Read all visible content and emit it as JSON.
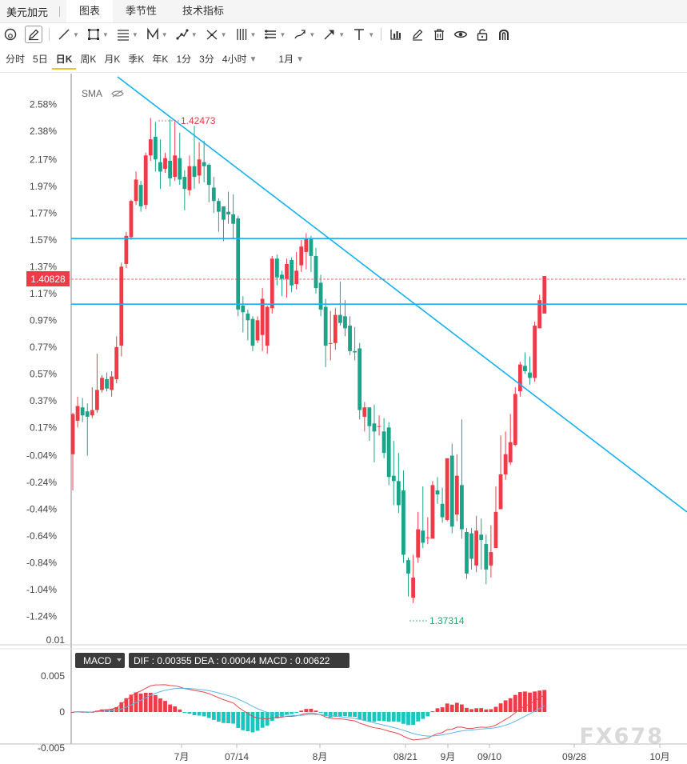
{
  "header": {
    "instrument": "美元加元",
    "tabs": [
      {
        "label": "图表",
        "active": true
      },
      {
        "label": "季节性",
        "active": false
      },
      {
        "label": "技术指标",
        "active": false
      }
    ]
  },
  "toolbar": {
    "tools": [
      "reset-view-icon",
      "pencil-icon",
      "line-icon",
      "rectangle-icon",
      "fib-icon",
      "pattern-icon",
      "path-icon",
      "measure-icon",
      "bars-icon",
      "channel-icon",
      "brush-icon",
      "arrow-icon",
      "text-icon",
      "indicator-icon",
      "edit-icon",
      "trash-icon",
      "eye-icon",
      "unlock-icon",
      "magnet-icon"
    ]
  },
  "periods": {
    "items": [
      "分时",
      "5日",
      "日K",
      "周K",
      "月K",
      "季K",
      "年K",
      "1分",
      "3分",
      "4小时"
    ],
    "active": "日K",
    "range": "1月"
  },
  "chart_data": {
    "type": "candlestick",
    "indicator_label": "SMA",
    "y_ticks": [
      "2.58%",
      "2.38%",
      "2.17%",
      "1.97%",
      "1.77%",
      "1.57%",
      "1.37%",
      "1.17%",
      "0.97%",
      "0.77%",
      "0.57%",
      "0.37%",
      "0.17%",
      "-0.04%",
      "-0.24%",
      "-0.44%",
      "-0.64%",
      "-0.84%",
      "-1.04%",
      "-1.24%"
    ],
    "x_ticks": [
      "7月",
      "07/14",
      "8月",
      "08/21",
      "9月",
      "09/10",
      "09/28",
      "10月"
    ],
    "current_price": "1.40828",
    "high_label": "1.42473",
    "low_label": "1.37314",
    "candles_pct": [
      [
        -0.03,
        0.27,
        -0.3,
        0.28
      ],
      [
        0.22,
        0.33,
        0.17,
        0.4
      ],
      [
        0.32,
        0.26,
        0.21,
        0.39
      ],
      [
        0.29,
        0.25,
        -0.04,
        0.35
      ],
      [
        0.26,
        0.3,
        0.24,
        0.47
      ],
      [
        0.3,
        0.45,
        0.28,
        0.72
      ],
      [
        0.45,
        0.54,
        0.43,
        0.56
      ],
      [
        0.53,
        0.46,
        0.44,
        0.58
      ],
      [
        0.45,
        0.55,
        0.4,
        0.59
      ],
      [
        0.53,
        0.77,
        0.5,
        0.85
      ],
      [
        0.78,
        1.37,
        0.7,
        1.4
      ],
      [
        1.39,
        1.6,
        1.36,
        1.63
      ],
      [
        1.59,
        1.86,
        1.57,
        1.87
      ],
      [
        1.86,
        2.02,
        1.83,
        2.08
      ],
      [
        1.98,
        1.82,
        1.78,
        2.01
      ],
      [
        1.83,
        2.2,
        1.8,
        2.22
      ],
      [
        2.2,
        2.32,
        2.16,
        2.48
      ],
      [
        2.34,
        2.17,
        2.08,
        2.45
      ],
      [
        2.15,
        2.08,
        1.95,
        2.32
      ],
      [
        2.1,
        2.18,
        2.07,
        2.22
      ],
      [
        2.16,
        2.03,
        1.97,
        2.47
      ],
      [
        2.04,
        2.2,
        2.01,
        2.45
      ],
      [
        2.18,
        2.02,
        1.98,
        2.37
      ],
      [
        2.04,
        1.95,
        1.79,
        2.09
      ],
      [
        1.94,
        2.12,
        1.9,
        2.2
      ],
      [
        2.12,
        2.04,
        1.95,
        2.42
      ],
      [
        2.05,
        2.17,
        1.99,
        2.3
      ],
      [
        2.15,
        2.12,
        2.0,
        2.31
      ],
      [
        2.13,
        1.98,
        1.85,
        2.14
      ],
      [
        1.96,
        1.86,
        1.77,
        2.04
      ],
      [
        1.86,
        1.78,
        1.63,
        1.88
      ],
      [
        1.82,
        1.72,
        1.56,
        1.8
      ],
      [
        1.78,
        1.76,
        1.69,
        1.93
      ],
      [
        1.76,
        1.69,
        1.58,
        1.91
      ],
      [
        1.73,
        1.05,
        1.0,
        1.75
      ],
      [
        1.08,
        1.03,
        0.88,
        1.15
      ],
      [
        1.02,
        0.97,
        0.82,
        1.05
      ],
      [
        0.98,
        0.78,
        0.74,
        1.0
      ],
      [
        0.82,
        0.97,
        0.8,
        1.0
      ],
      [
        0.86,
        1.13,
        0.74,
        1.21
      ],
      [
        0.78,
        1.07,
        0.72,
        1.08
      ],
      [
        1.06,
        1.43,
        1.02,
        1.45
      ],
      [
        1.43,
        1.29,
        1.23,
        1.46
      ],
      [
        1.31,
        1.28,
        1.15,
        1.34
      ],
      [
        1.28,
        1.39,
        1.14,
        1.43
      ],
      [
        1.42,
        1.23,
        1.18,
        1.44
      ],
      [
        1.24,
        1.34,
        1.2,
        1.48
      ],
      [
        1.38,
        1.52,
        1.33,
        1.57
      ],
      [
        1.48,
        1.58,
        1.35,
        1.62
      ],
      [
        1.58,
        1.45,
        1.33,
        1.6
      ],
      [
        1.45,
        1.21,
        1.17,
        1.51
      ],
      [
        1.25,
        1.05,
        1.0,
        1.31
      ],
      [
        1.07,
        0.78,
        0.62,
        1.13
      ],
      [
        0.8,
        0.8,
        0.67,
        1.04
      ],
      [
        0.8,
        1.01,
        0.75,
        1.06
      ],
      [
        1.01,
        0.95,
        0.93,
        1.26
      ],
      [
        1.0,
        0.91,
        0.85,
        1.12
      ],
      [
        0.93,
        0.74,
        0.71,
        1.0
      ],
      [
        0.74,
        0.73,
        0.67,
        0.92
      ],
      [
        0.76,
        0.3,
        0.23,
        0.8
      ],
      [
        0.25,
        0.32,
        0.14,
        0.36
      ],
      [
        0.32,
        0.18,
        0.07,
        0.21
      ],
      [
        0.2,
        0.14,
        -0.09,
        0.34
      ],
      [
        0.18,
        0.18,
        0.11,
        0.26
      ],
      [
        0.14,
        -0.02,
        -0.06,
        0.24
      ],
      [
        0.17,
        -0.2,
        -0.26,
        0.21
      ],
      [
        -0.19,
        -0.23,
        -0.41,
        0.07
      ],
      [
        -0.23,
        -0.41,
        -0.47,
        -0.02
      ],
      [
        -0.3,
        -0.78,
        -0.84,
        -0.15
      ],
      [
        -0.82,
        -0.92,
        -1.09,
        -0.8
      ],
      [
        -1.1,
        -0.95,
        -1.14,
        -0.78
      ],
      [
        -0.8,
        -0.59,
        -0.84,
        -0.46
      ],
      [
        -0.6,
        -0.69,
        -0.73,
        -0.27
      ],
      [
        -0.65,
        -0.65,
        -0.7,
        -0.5
      ],
      [
        -0.66,
        -0.26,
        -0.64,
        -0.23
      ],
      [
        -0.3,
        -0.33,
        -0.4,
        -0.2
      ],
      [
        -0.4,
        -0.5,
        -0.54,
        -0.28
      ],
      [
        -0.52,
        -0.06,
        -0.53,
        -0.08
      ],
      [
        -0.04,
        -0.57,
        -0.62,
        0.05
      ],
      [
        -0.48,
        -0.19,
        -0.53,
        -0.03
      ],
      [
        -0.26,
        -0.59,
        -0.66,
        0.23
      ],
      [
        -0.61,
        -0.92,
        -0.96,
        -0.58
      ],
      [
        -0.62,
        -0.81,
        -0.89,
        -0.58
      ],
      [
        -0.86,
        -0.6,
        -0.91,
        -0.49
      ],
      [
        -0.63,
        -0.67,
        -0.89,
        -0.51
      ],
      [
        -0.7,
        -0.89,
        -1.0,
        -0.63
      ],
      [
        -0.86,
        -0.76,
        -0.95,
        -0.56
      ],
      [
        -0.73,
        -0.46,
        -0.71,
        -0.27
      ],
      [
        -0.44,
        -0.18,
        -0.39,
        0.11
      ],
      [
        -0.18,
        -0.03,
        -0.22,
        0.14
      ],
      [
        -0.09,
        0.06,
        -0.11,
        0.27
      ],
      [
        0.04,
        0.42,
        0.03,
        0.47
      ],
      [
        0.44,
        0.64,
        0.4,
        0.66
      ],
      [
        0.63,
        0.59,
        0.57,
        0.73
      ],
      [
        0.58,
        0.54,
        0.49,
        0.7
      ],
      [
        0.54,
        0.93,
        0.51,
        0.96
      ],
      [
        0.91,
        1.12,
        0.92,
        1.16
      ],
      [
        1.02,
        1.3,
        1.07,
        1.3
      ]
    ],
    "horizontal_lines_pct": [
      1.58,
      1.09
    ],
    "trendline": "descending",
    "macd": {
      "label": "MACD",
      "dif": "0.00355",
      "dea": "0.00044",
      "macd": "0.00622",
      "y_ticks": [
        "0.01",
        "0.005",
        "0",
        "-0.005"
      ]
    }
  },
  "watermark": "FX678"
}
